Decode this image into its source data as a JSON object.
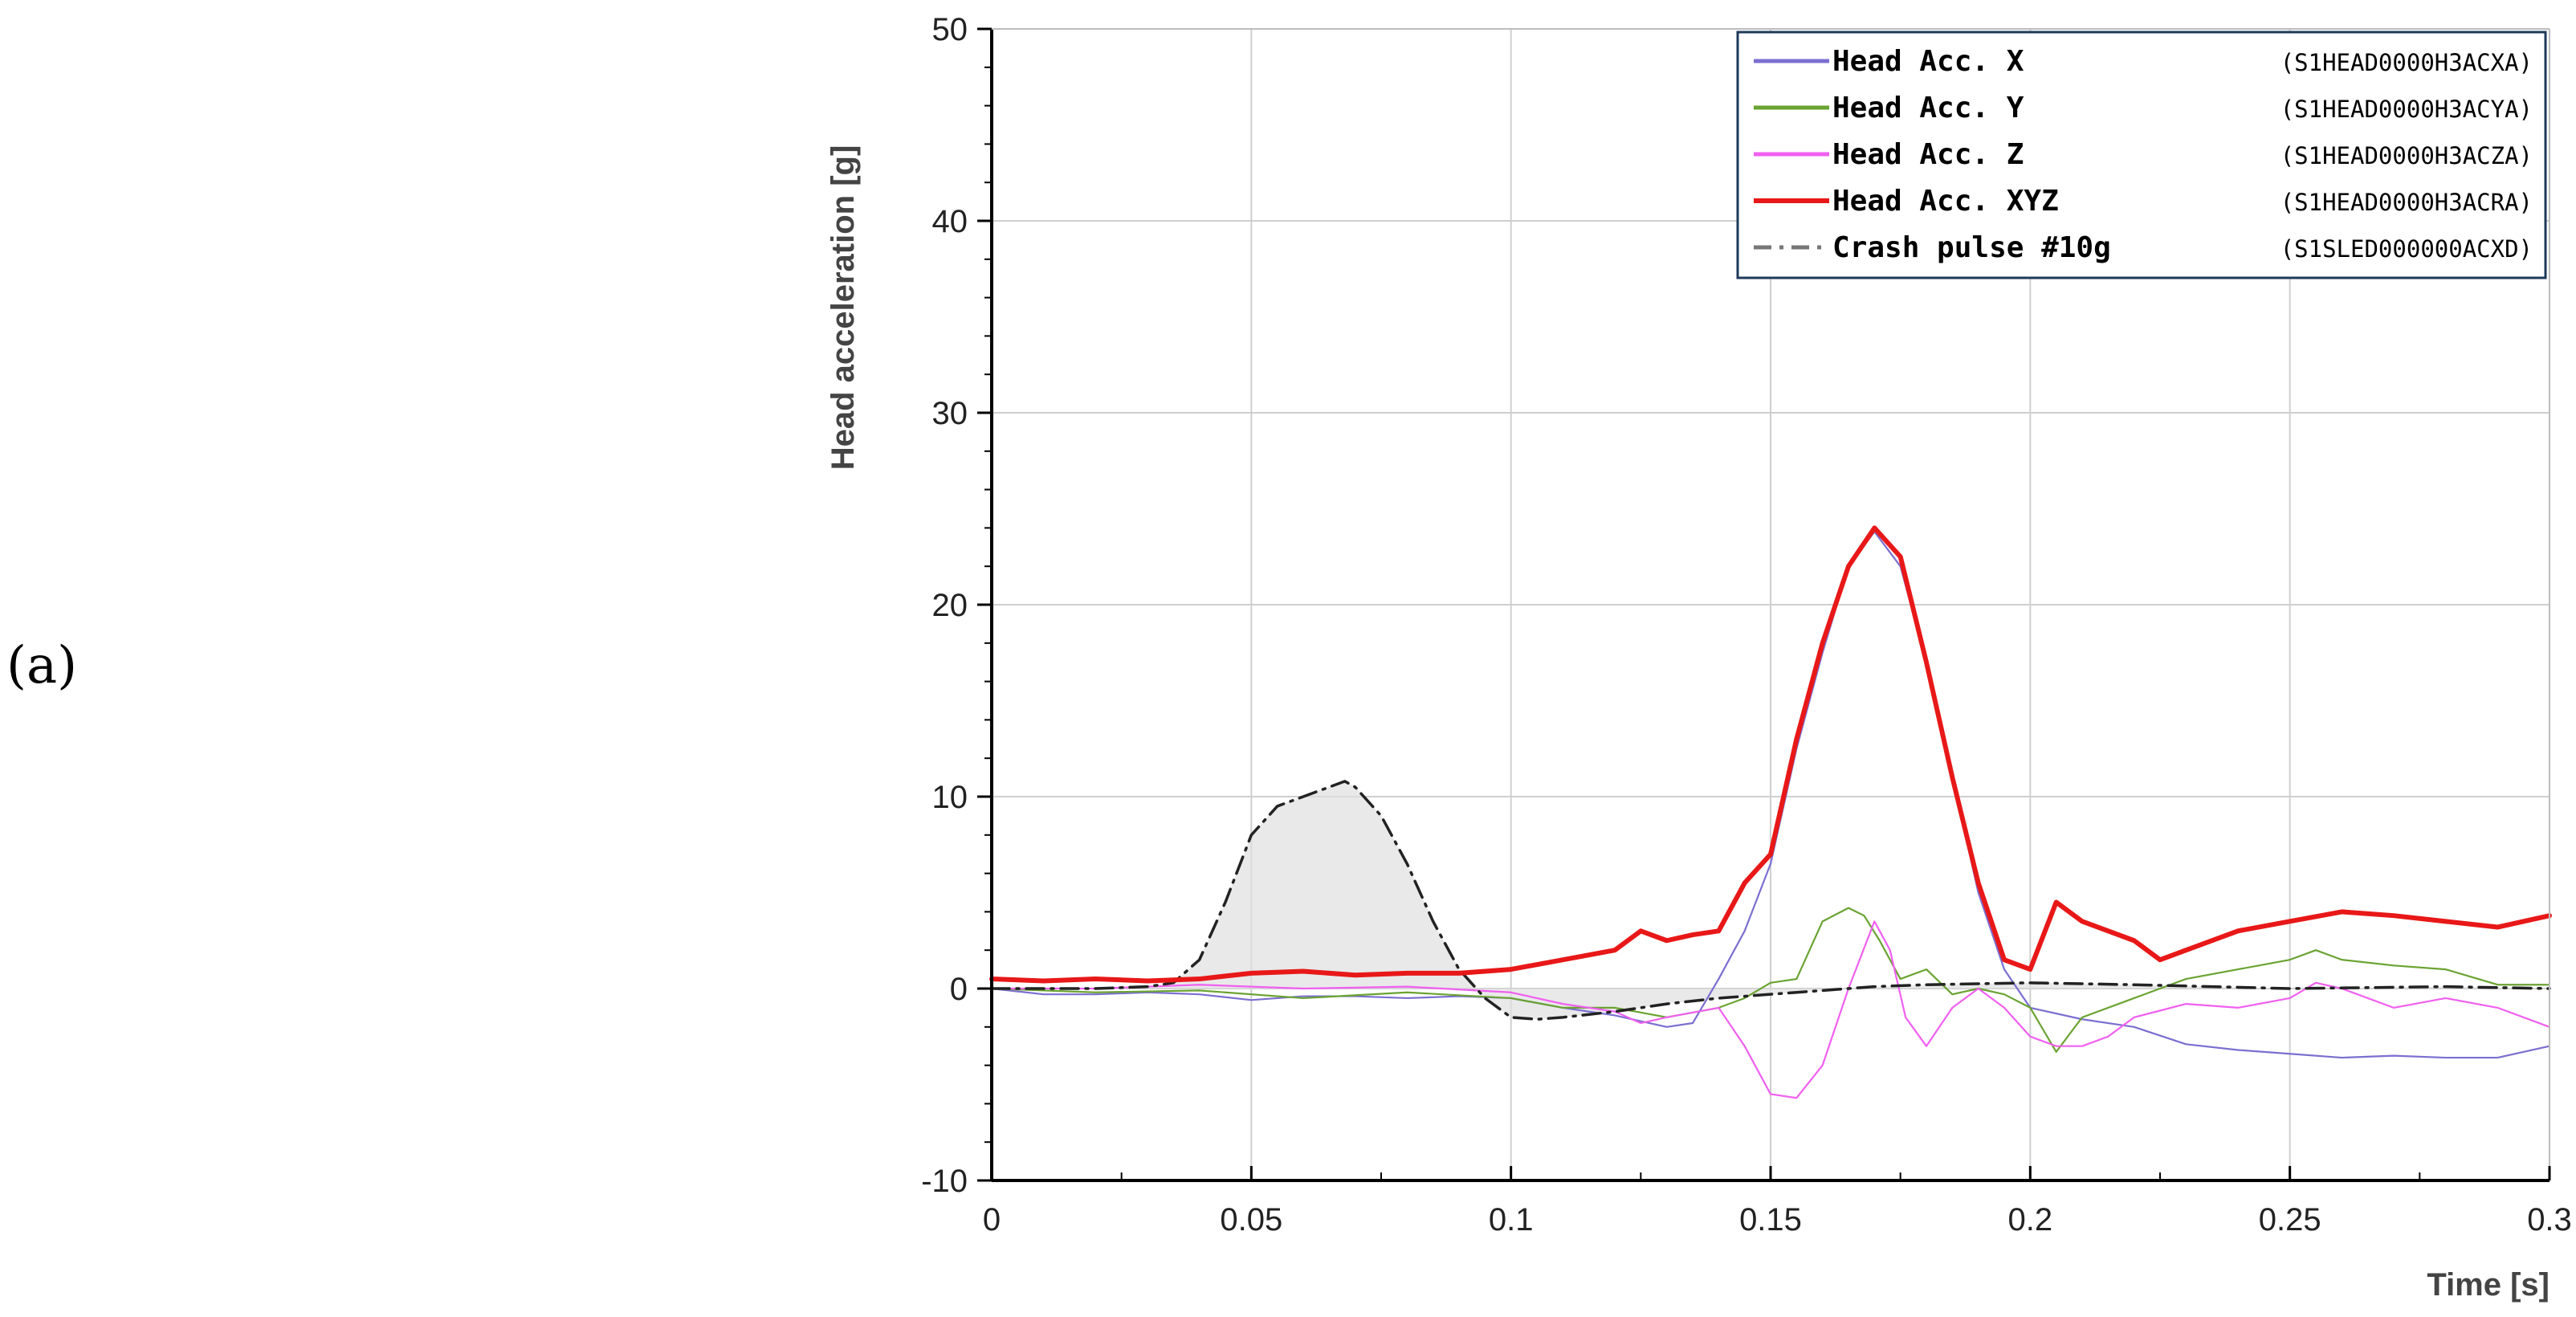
{
  "panel_label": "(a)",
  "chart_data": {
    "type": "line",
    "xlabel": "Time [s]",
    "ylabel": "Head acceleration [g]",
    "xlim": [
      0,
      0.3
    ],
    "ylim": [
      -10,
      50
    ],
    "xticks": [
      0,
      0.05,
      0.1,
      0.15,
      0.2,
      0.25,
      0.3
    ],
    "xtick_labels": [
      "0",
      "0.05",
      "0.1",
      "0.15",
      "0.2",
      "0.25",
      "0.3"
    ],
    "yticks": [
      -10,
      0,
      10,
      20,
      30,
      40,
      50
    ],
    "ytick_labels": [
      "-10",
      "0",
      "10",
      "20",
      "30",
      "40",
      "50"
    ],
    "grid": true,
    "legend_position": "top-right",
    "series": [
      {
        "name": "Head Acc. X",
        "code": "(S1HEAD0000H3ACXA)",
        "color": "#7b6fd0",
        "style": "solid",
        "x": [
          0,
          0.01,
          0.02,
          0.03,
          0.04,
          0.05,
          0.06,
          0.07,
          0.08,
          0.09,
          0.1,
          0.11,
          0.12,
          0.13,
          0.135,
          0.14,
          0.145,
          0.15,
          0.155,
          0.16,
          0.165,
          0.17,
          0.175,
          0.18,
          0.185,
          0.19,
          0.195,
          0.2,
          0.21,
          0.22,
          0.23,
          0.24,
          0.25,
          0.26,
          0.27,
          0.28,
          0.29,
          0.3
        ],
        "y": [
          0,
          -0.3,
          -0.3,
          -0.2,
          -0.3,
          -0.6,
          -0.4,
          -0.4,
          -0.5,
          -0.4,
          -0.5,
          -1.0,
          -1.4,
          -2.0,
          -1.8,
          0.5,
          3.0,
          6.5,
          12.5,
          17.5,
          22.0,
          23.8,
          22.0,
          17.0,
          11.0,
          5.0,
          1.0,
          -1.0,
          -1.6,
          -2.0,
          -2.9,
          -3.2,
          -3.4,
          -3.6,
          -3.5,
          -3.6,
          -3.6,
          -3.0
        ]
      },
      {
        "name": "Head Acc. Y",
        "code": "(S1HEAD0000H3ACYA)",
        "color": "#6aa332",
        "style": "solid",
        "x": [
          0,
          0.02,
          0.04,
          0.06,
          0.08,
          0.1,
          0.11,
          0.12,
          0.13,
          0.14,
          0.145,
          0.15,
          0.155,
          0.16,
          0.165,
          0.168,
          0.171,
          0.175,
          0.18,
          0.185,
          0.19,
          0.195,
          0.2,
          0.205,
          0.21,
          0.22,
          0.23,
          0.24,
          0.25,
          0.255,
          0.26,
          0.27,
          0.28,
          0.29,
          0.3
        ],
        "y": [
          0,
          -0.2,
          -0.1,
          -0.5,
          -0.2,
          -0.5,
          -1.0,
          -1.0,
          -1.5,
          -1.0,
          -0.5,
          0.3,
          0.5,
          3.5,
          4.2,
          3.8,
          2.5,
          0.5,
          1.0,
          -0.3,
          0.0,
          -0.3,
          -1.0,
          -3.3,
          -1.5,
          -0.5,
          0.5,
          1.0,
          1.5,
          2.0,
          1.5,
          1.2,
          1.0,
          0.2,
          0.2
        ]
      },
      {
        "name": "Head Acc. Z",
        "code": "(S1HEAD0000H3ACZA)",
        "color": "#f060f0",
        "style": "solid",
        "x": [
          0,
          0.02,
          0.04,
          0.06,
          0.08,
          0.1,
          0.11,
          0.12,
          0.125,
          0.13,
          0.14,
          0.145,
          0.15,
          0.155,
          0.16,
          0.165,
          0.17,
          0.173,
          0.176,
          0.18,
          0.185,
          0.19,
          0.195,
          0.2,
          0.205,
          0.21,
          0.215,
          0.22,
          0.23,
          0.24,
          0.25,
          0.255,
          0.26,
          0.27,
          0.28,
          0.29,
          0.3
        ],
        "y": [
          0,
          0,
          0.2,
          0,
          0.1,
          -0.2,
          -0.8,
          -1.2,
          -1.8,
          -1.5,
          -1.0,
          -3.0,
          -5.5,
          -5.7,
          -4.0,
          0.0,
          3.5,
          2.0,
          -1.5,
          -3.0,
          -1.0,
          0.0,
          -1.0,
          -2.5,
          -3.0,
          -3.0,
          -2.5,
          -1.5,
          -0.8,
          -1.0,
          -0.5,
          0.3,
          0.0,
          -1.0,
          -0.5,
          -1.0,
          -2.0
        ]
      },
      {
        "name": "Head Acc. XYZ",
        "code": "(S1HEAD0000H3ACRA)",
        "color": "#e81818",
        "style": "solid",
        "x": [
          0,
          0.01,
          0.02,
          0.03,
          0.04,
          0.05,
          0.06,
          0.07,
          0.08,
          0.09,
          0.1,
          0.11,
          0.12,
          0.125,
          0.13,
          0.135,
          0.14,
          0.145,
          0.15,
          0.155,
          0.16,
          0.165,
          0.17,
          0.175,
          0.18,
          0.185,
          0.19,
          0.195,
          0.2,
          0.205,
          0.21,
          0.22,
          0.225,
          0.23,
          0.24,
          0.25,
          0.26,
          0.27,
          0.28,
          0.29,
          0.3
        ],
        "y": [
          0.5,
          0.4,
          0.5,
          0.4,
          0.5,
          0.8,
          0.9,
          0.7,
          0.8,
          0.8,
          1.0,
          1.5,
          2.0,
          3.0,
          2.5,
          2.8,
          3.0,
          5.5,
          7.0,
          13.0,
          18.0,
          22.0,
          24.0,
          22.5,
          17.0,
          11.0,
          5.5,
          1.5,
          1.0,
          4.5,
          3.5,
          2.5,
          1.5,
          2.0,
          3.0,
          3.5,
          4.0,
          3.8,
          3.5,
          3.2,
          3.8
        ]
      },
      {
        "name": "Crash pulse #10g",
        "code": "(S1SLED000000ACXD)",
        "color": "#777777",
        "style": "dash-dot",
        "x": [
          0,
          0.01,
          0.02,
          0.03,
          0.035,
          0.04,
          0.045,
          0.05,
          0.055,
          0.06,
          0.065,
          0.068,
          0.07,
          0.075,
          0.08,
          0.085,
          0.09,
          0.095,
          0.1,
          0.105,
          0.11,
          0.12,
          0.13,
          0.14,
          0.15,
          0.16,
          0.17,
          0.18,
          0.2,
          0.22,
          0.25,
          0.28,
          0.3
        ],
        "y": [
          0,
          0,
          0,
          0.1,
          0.3,
          1.5,
          4.5,
          8.0,
          9.5,
          10.0,
          10.5,
          10.8,
          10.5,
          9.0,
          6.5,
          3.5,
          1.0,
          -0.5,
          -1.5,
          -1.6,
          -1.5,
          -1.2,
          -0.8,
          -0.5,
          -0.3,
          -0.1,
          0.1,
          0.2,
          0.3,
          0.2,
          0.0,
          0.1,
          0.0
        ]
      }
    ]
  }
}
